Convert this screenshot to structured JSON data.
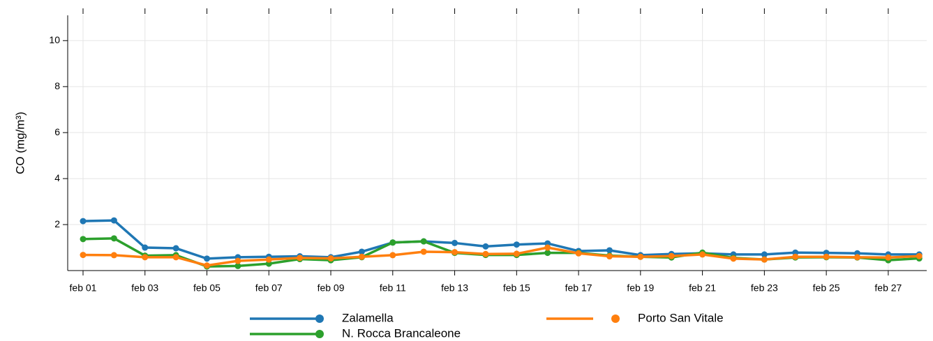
{
  "chart_data": {
    "type": "line",
    "y_label": "CO (mg/m³)",
    "categories": [
      "feb 01",
      null,
      "feb 03",
      null,
      "feb 05",
      null,
      "feb 07",
      null,
      "feb 09",
      null,
      "feb 11",
      null,
      "feb 13",
      null,
      "feb 15",
      null,
      "feb 17",
      null,
      "feb 19",
      null,
      "feb 21",
      null,
      "feb 23",
      null,
      "feb 25",
      null,
      "feb 27",
      null
    ],
    "series": [
      {
        "name": "Zalamella",
        "color": "#1f77b4",
        "values": [
          2.15,
          2.18,
          1.0,
          0.97,
          0.52,
          0.58,
          0.6,
          0.62,
          0.58,
          0.82,
          1.22,
          1.27,
          1.2,
          1.05,
          1.13,
          1.18,
          0.85,
          0.88,
          0.67,
          0.72,
          0.75,
          0.7,
          0.7,
          0.78,
          0.77,
          0.75,
          0.7,
          0.7
        ]
      },
      {
        "name": "N. Rocca Brancaleone",
        "color": "#2ca02c",
        "values": [
          1.37,
          1.4,
          0.65,
          0.67,
          0.18,
          0.2,
          0.3,
          0.5,
          0.45,
          0.58,
          1.22,
          1.27,
          0.77,
          0.68,
          0.68,
          0.77,
          0.77,
          0.65,
          0.6,
          0.57,
          0.78,
          0.55,
          0.48,
          0.57,
          0.58,
          0.57,
          0.45,
          0.53
        ]
      },
      {
        "name": "Porto San Vitale",
        "color": "#ff7f0e",
        "values": [
          0.68,
          0.67,
          0.58,
          0.58,
          0.22,
          0.42,
          0.48,
          0.55,
          0.53,
          0.6,
          0.67,
          0.82,
          0.8,
          0.72,
          0.73,
          1.0,
          0.75,
          0.62,
          0.6,
          0.63,
          0.7,
          0.52,
          0.48,
          0.6,
          0.6,
          0.58,
          0.57,
          0.63
        ]
      }
    ],
    "ylim": [
      0,
      11.1
    ],
    "yticks": [
      2,
      4,
      6,
      8,
      10
    ],
    "grid": true
  }
}
